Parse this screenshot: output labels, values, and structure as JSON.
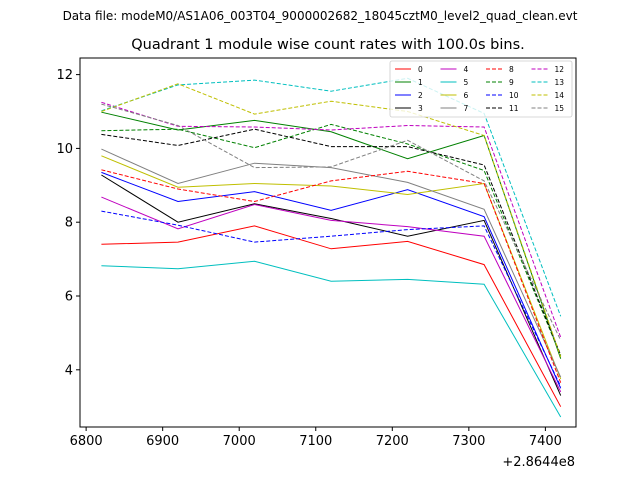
{
  "header": {
    "file_label": "Data file: modeM0/AS1A06_003T04_9000002682_18045cztM0_level2_quad_clean.evt"
  },
  "chart_data": {
    "type": "line",
    "title": "Quadrant 1 module wise count rates with 100.0s bins.",
    "xlabel": "",
    "ylabel": "",
    "x_offset_label": "+2.8644e8",
    "x": [
      6820,
      6920,
      7020,
      7120,
      7220,
      7320,
      7420
    ],
    "xlim": [
      6792,
      7440
    ],
    "ylim": [
      2.45,
      12.45
    ],
    "xticks": [
      6800,
      6900,
      7000,
      7100,
      7200,
      7300,
      7400
    ],
    "yticks": [
      4,
      6,
      8,
      10,
      12
    ],
    "grid": false,
    "legend_position": "top-right",
    "series": [
      {
        "name": "0",
        "color": "#ff0000",
        "dash": "solid",
        "values": [
          7.4,
          7.46,
          7.9,
          7.28,
          7.48,
          6.85,
          3.0
        ]
      },
      {
        "name": "1",
        "color": "#008000",
        "dash": "solid",
        "values": [
          10.98,
          10.5,
          10.76,
          10.45,
          9.72,
          10.35,
          4.3
        ]
      },
      {
        "name": "2",
        "color": "#0000ff",
        "dash": "solid",
        "values": [
          9.35,
          8.56,
          8.83,
          8.32,
          8.88,
          8.15,
          3.5
        ]
      },
      {
        "name": "3",
        "color": "#000000",
        "dash": "solid",
        "values": [
          9.28,
          8.0,
          8.5,
          8.1,
          7.62,
          8.05,
          3.3
        ]
      },
      {
        "name": "4",
        "color": "#bf00bf",
        "dash": "solid",
        "values": [
          8.68,
          7.82,
          8.48,
          8.05,
          7.88,
          7.62,
          3.4
        ]
      },
      {
        "name": "5",
        "color": "#00bfbf",
        "dash": "solid",
        "values": [
          6.82,
          6.74,
          6.94,
          6.4,
          6.45,
          6.32,
          2.72
        ]
      },
      {
        "name": "6",
        "color": "#bfbf00",
        "dash": "solid",
        "values": [
          9.8,
          8.95,
          9.05,
          8.98,
          8.75,
          9.05,
          3.75
        ]
      },
      {
        "name": "7",
        "color": "#808080",
        "dash": "solid",
        "values": [
          9.98,
          9.05,
          9.6,
          9.48,
          9.08,
          8.35,
          3.8
        ]
      },
      {
        "name": "8",
        "color": "#ff0000",
        "dash": "dashed",
        "values": [
          9.42,
          8.9,
          8.56,
          9.12,
          9.38,
          9.05,
          3.65
        ]
      },
      {
        "name": "9",
        "color": "#008000",
        "dash": "dashed",
        "values": [
          10.48,
          10.52,
          10.02,
          10.65,
          10.12,
          9.4,
          4.38
        ]
      },
      {
        "name": "10",
        "color": "#0000ff",
        "dash": "dashed",
        "values": [
          8.3,
          7.92,
          7.46,
          7.62,
          7.8,
          7.9,
          3.55
        ]
      },
      {
        "name": "11",
        "color": "#000000",
        "dash": "dashed",
        "values": [
          10.38,
          10.08,
          10.52,
          10.05,
          10.05,
          9.55,
          4.4
        ]
      },
      {
        "name": "12",
        "color": "#bf00bf",
        "dash": "dashed",
        "values": [
          11.25,
          10.6,
          10.58,
          10.5,
          10.62,
          10.58,
          4.88
        ]
      },
      {
        "name": "13",
        "color": "#00bfbf",
        "dash": "dashed",
        "values": [
          11.02,
          11.72,
          11.85,
          11.55,
          11.9,
          10.95,
          5.45
        ]
      },
      {
        "name": "14",
        "color": "#bfbf00",
        "dash": "dashed",
        "values": [
          11.0,
          11.75,
          10.93,
          11.28,
          11.0,
          10.35,
          4.35
        ]
      },
      {
        "name": "15",
        "color": "#808080",
        "dash": "dashed",
        "values": [
          11.2,
          10.62,
          9.48,
          9.5,
          10.22,
          9.12,
          4.8
        ]
      }
    ]
  }
}
